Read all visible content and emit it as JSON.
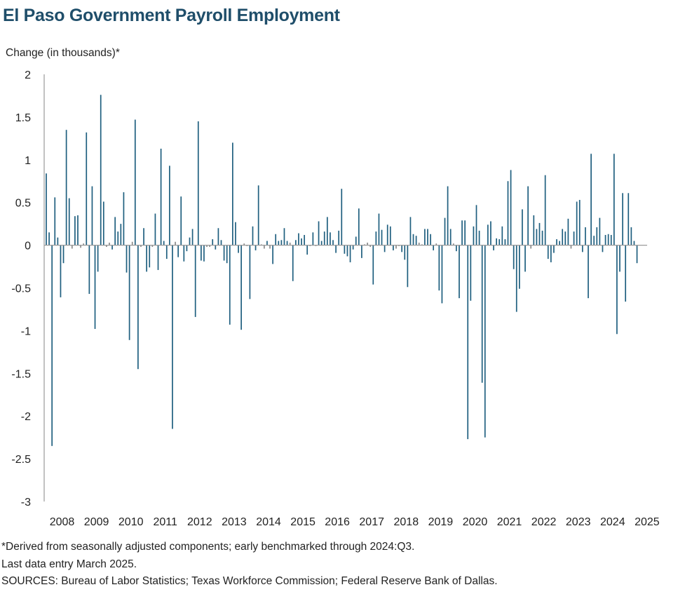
{
  "chart_data": {
    "type": "bar",
    "title": "El Paso Government Payroll Employment",
    "ylabel": "Change (in thousands)*",
    "xlabel": "",
    "ylim": [
      -3,
      2
    ],
    "yticks": [
      2,
      1.5,
      1,
      0.5,
      0,
      -0.5,
      -1,
      -1.5,
      -2,
      -2.5,
      -3
    ],
    "ytick_labels": [
      "2",
      "1.5",
      "1",
      "0.5",
      "0",
      "-0.5",
      "-1",
      "-1.5",
      "-2",
      "-2.5",
      "-3"
    ],
    "xtick_labels": [
      "2008",
      "2009",
      "2010",
      "2011",
      "2012",
      "2013",
      "2014",
      "2015",
      "2016",
      "2017",
      "2018",
      "2019",
      "2020",
      "2021",
      "2022",
      "2023",
      "2024",
      "2025"
    ],
    "x_start": "2008-01",
    "x_end": "2025-03",
    "frequency": "monthly",
    "grid": false,
    "colors": {
      "bar": "#1f5f7f",
      "axis": "#9a9a9a",
      "title": "#1f4e6a"
    },
    "values": [
      0.84,
      0.15,
      -2.35,
      0.56,
      0.09,
      -0.61,
      -0.21,
      1.35,
      0.55,
      -0.04,
      0.34,
      0.35,
      -0.03,
      0.02,
      1.32,
      -0.57,
      0.69,
      -0.98,
      -0.31,
      1.76,
      0.51,
      -0.02,
      0.03,
      -0.05,
      0.33,
      0.16,
      0.25,
      0.62,
      -0.32,
      -1.11,
      0.04,
      1.47,
      -1.45,
      -0.02,
      0.2,
      -0.31,
      -0.26,
      -0.02,
      0.37,
      -0.29,
      1.13,
      0.05,
      -0.16,
      0.93,
      -2.15,
      0.04,
      -0.14,
      0.57,
      -0.19,
      -0.07,
      0.09,
      0.19,
      -0.84,
      1.45,
      -0.18,
      -0.19,
      -0.02,
      -0.02,
      0.07,
      -0.05,
      0.2,
      0.06,
      -0.18,
      -0.21,
      -0.93,
      1.2,
      0.27,
      -0.09,
      -0.99,
      0.02,
      -0.01,
      -0.63,
      0.22,
      -0.06,
      0.7,
      0.01,
      -0.04,
      0.05,
      -0.04,
      -0.22,
      0.13,
      0.05,
      0.06,
      0.2,
      0.05,
      0.03,
      -0.42,
      0.06,
      0.14,
      0.08,
      0.12,
      -0.11,
      -0.01,
      0.15,
      -0.01,
      0.28,
      0.05,
      0.16,
      0.33,
      0.15,
      0.06,
      -0.09,
      0.17,
      0.66,
      -0.1,
      -0.13,
      -0.2,
      -0.05,
      0.1,
      0.43,
      -0.15,
      0.01,
      0.03,
      -0.02,
      -0.46,
      0.16,
      0.37,
      0.18,
      -0.08,
      0.24,
      0.22,
      -0.06,
      -0.04,
      -0.01,
      -0.08,
      -0.17,
      -0.49,
      0.33,
      0.13,
      0.11,
      0.03,
      0.01,
      0.19,
      0.19,
      0.13,
      -0.06,
      0.02,
      -0.53,
      -0.68,
      0.32,
      0.69,
      0.19,
      0.02,
      -0.07,
      -0.62,
      0.29,
      0.29,
      -2.27,
      -0.65,
      0.22,
      0.47,
      0.17,
      -1.61,
      -2.25,
      0.24,
      0.28,
      -0.06,
      0.08,
      0.07,
      0.22,
      0.07,
      0.75,
      0.88,
      -0.28,
      -0.78,
      -0.51,
      0.42,
      -0.31,
      0.69,
      -0.04,
      0.35,
      0.19,
      0.26,
      0.17,
      0.82,
      -0.16,
      -0.2,
      -0.09,
      0.07,
      0.05,
      0.19,
      0.16,
      0.31,
      -0.04,
      0.16,
      0.51,
      0.53,
      -0.08,
      0.21,
      -0.62,
      1.07,
      0.11,
      0.21,
      0.32,
      -0.08,
      0.12,
      0.13,
      0.12,
      1.07,
      -1.04,
      -0.31,
      0.61,
      -0.66,
      0.61,
      0.21,
      0.05,
      -0.21
    ]
  },
  "footnotes": {
    "note": "*Derived from seasonally adjusted components; early benchmarked through 2024:Q3.",
    "last_entry": "Last data entry March 2025.",
    "sources": "SOURCES: Bureau of Labor Statistics; Texas Workforce Commission; Federal Reserve Bank of Dallas."
  }
}
